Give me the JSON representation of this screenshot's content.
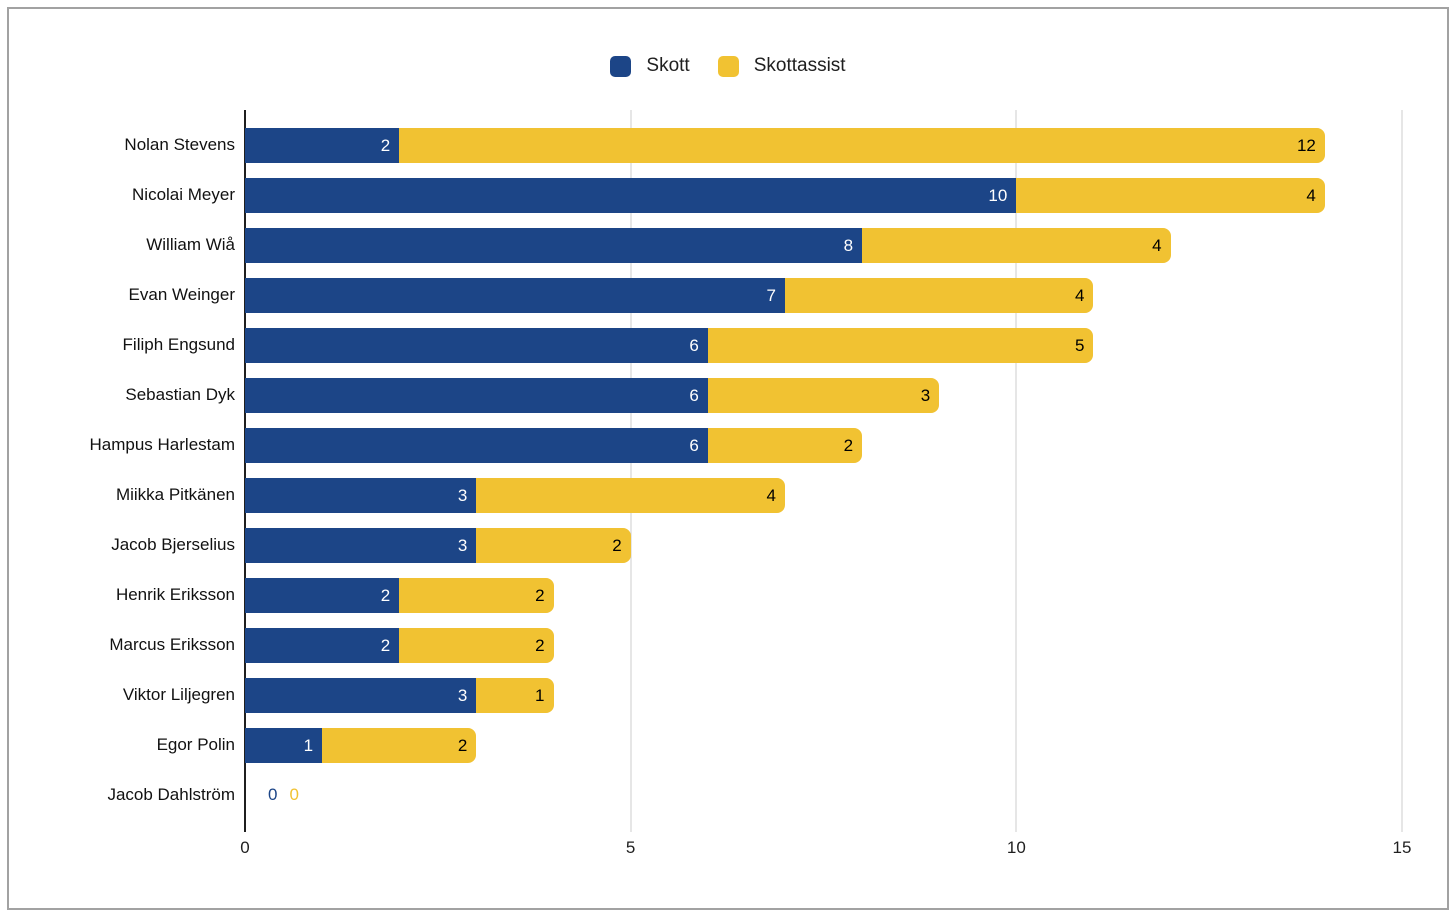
{
  "chart_data": {
    "type": "bar",
    "orientation": "horizontal",
    "stacked": true,
    "title": "",
    "xlabel": "",
    "ylabel": "",
    "categories": [
      "Nolan Stevens",
      "Nicolai Meyer",
      "William Wiå",
      "Evan Weinger",
      "Filiph Engsund",
      "Sebastian Dyk",
      "Hampus Harlestam",
      "Miikka Pitkänen",
      "Jacob Bjerselius",
      "Henrik Eriksson",
      "Marcus Eriksson",
      "Viktor Liljegren",
      "Egor Polin",
      "Jacob Dahlström"
    ],
    "series": [
      {
        "name": "Skott",
        "color": "#1c4587",
        "label_color": "#ffffff",
        "values": [
          2,
          10,
          8,
          7,
          6,
          6,
          6,
          3,
          3,
          2,
          2,
          3,
          1,
          0
        ]
      },
      {
        "name": "Skottassist",
        "color": "#f1c232",
        "label_color": "#000000",
        "values": [
          12,
          4,
          4,
          4,
          5,
          3,
          2,
          4,
          2,
          2,
          2,
          1,
          2,
          0
        ]
      }
    ],
    "xlim": [
      0,
      15
    ],
    "x_ticks": [
      0,
      5,
      10,
      15
    ],
    "grid": "vertical-on",
    "legend_position": "top-center"
  },
  "colors": {
    "background": "#ffffff",
    "frame_border": "#a2a2a2",
    "gridline": "#cccccc",
    "axis_line": "#1f1f1f",
    "text": "#111111"
  }
}
